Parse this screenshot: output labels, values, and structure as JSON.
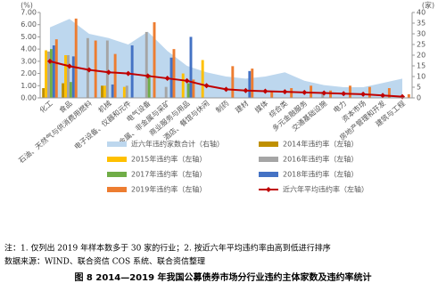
{
  "chart_data": {
    "type": "bar",
    "y_label": "(%)",
    "y2_label": "(家)",
    "categories": [
      "化工",
      "食品",
      "石油、天然气与供消费用燃料",
      "机械",
      "电子设备、仪器和元件",
      "电气设备",
      "金属、非金属与采矿",
      "商业服务与用品",
      "酒店、餐馆与休闲",
      "制药",
      "建材",
      "媒体",
      "综合类",
      "多元金融服务",
      "交通基础设施",
      "电力",
      "资本市场",
      "房地产管理和开发",
      "建筑与工程"
    ],
    "series": [
      {
        "name": "近六年违约家数合计（右轴）",
        "type": "area",
        "axis": "y2",
        "color": "#bdd7ee",
        "values": [
          33,
          37,
          30,
          28,
          25,
          31,
          22,
          15,
          12,
          10,
          9,
          10,
          12,
          8,
          6,
          5,
          5,
          7,
          9
        ]
      },
      {
        "name": "2014年违约率（左轴）",
        "type": "bar",
        "color": "#bf9000",
        "values": [
          0.8,
          1.2,
          0,
          1.0,
          0,
          0,
          0,
          0,
          0,
          0,
          0,
          0,
          0,
          0,
          0,
          0,
          0,
          0,
          0
        ]
      },
      {
        "name": "2015年违约率（左轴）",
        "type": "bar",
        "color": "#ffc000",
        "values": [
          3.9,
          3.5,
          0,
          1.0,
          0.9,
          0,
          0,
          2.0,
          3.1,
          0,
          0,
          0,
          0,
          0,
          0,
          0,
          0,
          0,
          0
        ]
      },
      {
        "name": "2016年违约率（左轴）",
        "type": "bar",
        "color": "#a5a5a5",
        "values": [
          3.8,
          3.5,
          4.9,
          4.7,
          1.0,
          5.4,
          0.9,
          0,
          0,
          0,
          0,
          0,
          0,
          0,
          0.5,
          0,
          0,
          0,
          0
        ]
      },
      {
        "name": "2017年违约率（左轴）",
        "type": "bar",
        "color": "#70ad47",
        "values": [
          4.0,
          1.3,
          0,
          0,
          0,
          1.9,
          0,
          1.2,
          0,
          0,
          0,
          0,
          0,
          0,
          0,
          0,
          0,
          0,
          0
        ]
      },
      {
        "name": "2018年违约率（左轴）",
        "type": "bar",
        "color": "#4472c4",
        "values": [
          4.3,
          3.4,
          0,
          1.1,
          4.3,
          0,
          3.3,
          5.0,
          0,
          0,
          2.2,
          0,
          0,
          0,
          0,
          0,
          0,
          0,
          0
        ]
      },
      {
        "name": "2019年违约率（左轴）",
        "type": "bar",
        "color": "#ed7d31",
        "values": [
          4.8,
          6.5,
          4.7,
          3.6,
          0,
          6.2,
          4.0,
          1.5,
          0,
          2.6,
          2.4,
          0.5,
          0.8,
          1.0,
          0.6,
          1.0,
          0.9,
          0.8,
          0.3
        ]
      },
      {
        "name": "近六年平均违约率（左轴）",
        "type": "line",
        "color": "#c00000",
        "values": [
          3.0,
          2.6,
          2.3,
          2.1,
          2.0,
          1.8,
          1.6,
          1.4,
          1.0,
          0.7,
          0.6,
          0.55,
          0.5,
          0.45,
          0.4,
          0.35,
          0.3,
          0.2,
          0.1
        ]
      }
    ],
    "ylim": [
      0,
      7
    ],
    "yticks": [
      {
        "value": 0,
        "label": "0.00"
      },
      {
        "value": 1,
        "label": "1.00"
      },
      {
        "value": 2,
        "label": "2.00"
      },
      {
        "value": 3,
        "label": "3.00"
      },
      {
        "value": 4,
        "label": "4.00"
      },
      {
        "value": 5,
        "label": "5.00"
      },
      {
        "value": 6,
        "label": "6.00"
      },
      {
        "value": 7,
        "label": "7.00"
      }
    ],
    "y2lim": [
      0,
      40
    ],
    "y2ticks": [
      0,
      5,
      10,
      15,
      20,
      25,
      30,
      35,
      40
    ],
    "notes": [
      "注：1. 仅列出 2019 年样本数多于 30 家的行业；2. 按近六年平均违约率由高到低进行排序",
      "数据来源：WIND、联合资信 COS 系统、联合资信整理"
    ],
    "caption": "图 8     2014—2019 年我国公募债券市场分行业违约主体家数及违约率统计"
  }
}
